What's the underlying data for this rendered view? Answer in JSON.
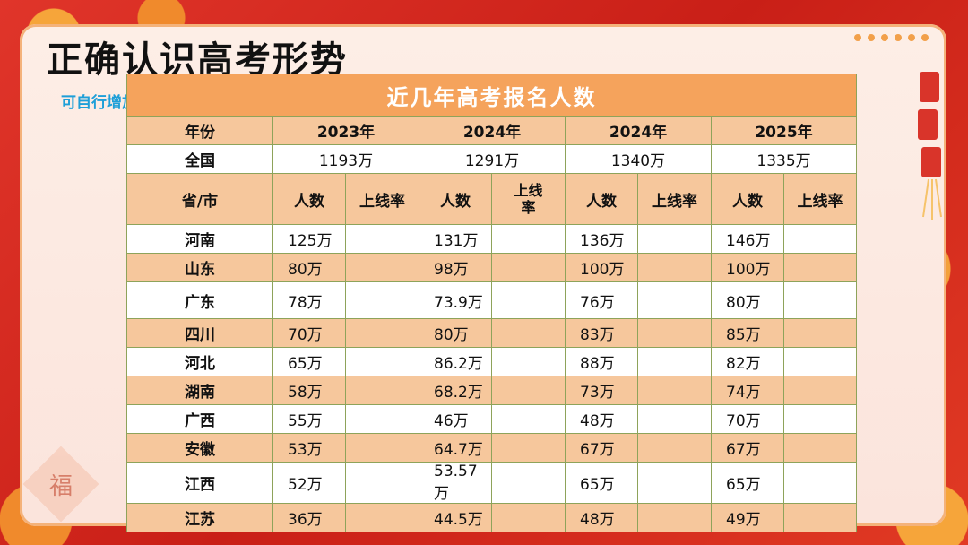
{
  "main_title": "正确认识高考形势",
  "note": "可自行增加本省上线率",
  "decor": {
    "fu_char": "福"
  },
  "table": {
    "title": "近几年高考报名人数",
    "year_label": "年份",
    "years": [
      "2023年",
      "2024年",
      "2024年",
      "2025年"
    ],
    "nation_label": "全国",
    "nation_values": [
      "1193万",
      "1291万",
      "1340万",
      "1335万"
    ],
    "province_label": "省/市",
    "count_label": "人数",
    "rate_label": "上线率",
    "rate_label_wrapped": "上线\n率",
    "rows": [
      {
        "province": "河南",
        "values": [
          "125万",
          "131万",
          "136万",
          "146万"
        ]
      },
      {
        "province": "山东",
        "values": [
          "80万",
          "98万",
          "100万",
          "100万"
        ]
      },
      {
        "province": "广东",
        "values": [
          "78万",
          "73.9万",
          "76万",
          "80万"
        ]
      },
      {
        "province": "四川",
        "values": [
          "70万",
          "80万",
          "83万",
          "85万"
        ]
      },
      {
        "province": "河北",
        "values": [
          "65万",
          "86.2万",
          "88万",
          "82万"
        ]
      },
      {
        "province": "湖南",
        "values": [
          "58万",
          "68.2万",
          "73万",
          "74万"
        ]
      },
      {
        "province": "广西",
        "values": [
          "55万",
          "46万",
          "48万",
          "70万"
        ]
      },
      {
        "province": "安徽",
        "values": [
          "53万",
          "64.7万",
          "67万",
          "67万"
        ]
      },
      {
        "province": "江西",
        "values": [
          "52万",
          "53.57万",
          "65万",
          "65万"
        ]
      },
      {
        "province": "江苏",
        "values": [
          "36万",
          "44.5万",
          "48万",
          "49万"
        ]
      }
    ]
  }
}
